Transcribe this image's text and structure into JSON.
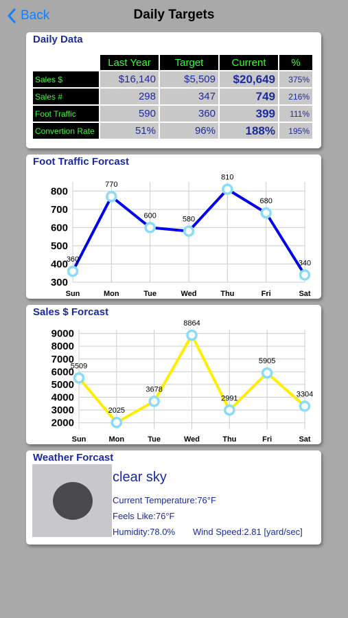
{
  "nav": {
    "back_label": "Back",
    "title": "Daily Targets"
  },
  "daily": {
    "title": "Daily Data",
    "columns": [
      "Last Year",
      "Target",
      "Current",
      "%"
    ],
    "rows": [
      {
        "label": "Sales $",
        "values": [
          "$16,140",
          "$5,509",
          "$20,649",
          "375%"
        ]
      },
      {
        "label": "Sales #",
        "values": [
          "298",
          "347",
          "749",
          "216%"
        ]
      },
      {
        "label": "Foot Traffic",
        "values": [
          "590",
          "360",
          "399",
          "111%"
        ]
      },
      {
        "label": "Convertion Rate",
        "values": [
          "51%",
          "96%",
          "188%",
          "195%"
        ]
      }
    ]
  },
  "foot_chart": {
    "title": "Foot Traffic Forcast",
    "chart_data": {
      "type": "line",
      "categories": [
        "Sun",
        "Mon",
        "Tue",
        "Wed",
        "Thu",
        "Fri",
        "Sat"
      ],
      "values": [
        360,
        770,
        600,
        580,
        810,
        680,
        340
      ],
      "ylim": [
        300,
        850
      ],
      "yticks": [
        300,
        400,
        500,
        600,
        700,
        800
      ],
      "grid": true,
      "line_color": "#0000ee",
      "marker_color": "#88ddf5"
    }
  },
  "sales_chart": {
    "title": "Sales $ Forcast",
    "chart_data": {
      "type": "line",
      "categories": [
        "Sun",
        "Mon",
        "Tue",
        "Wed",
        "Thu",
        "Fri",
        "Sat"
      ],
      "values": [
        5509,
        2025,
        3678,
        8864,
        2991,
        5905,
        3304
      ],
      "ylim": [
        1500,
        9300
      ],
      "yticks": [
        2000,
        3000,
        4000,
        5000,
        6000,
        7000,
        8000,
        9000
      ],
      "grid": true,
      "line_color": "#ffee00",
      "marker_color": "#88ddf5"
    }
  },
  "weather": {
    "title": "Weather Forcast",
    "description": "clear sky",
    "current_temp": "Current Temperature:76°F",
    "feels_like": "Feels Like:76°F",
    "humidity": "Humidity:78.0%",
    "wind": "Wind Speed:2.81 [yard/sec]"
  }
}
